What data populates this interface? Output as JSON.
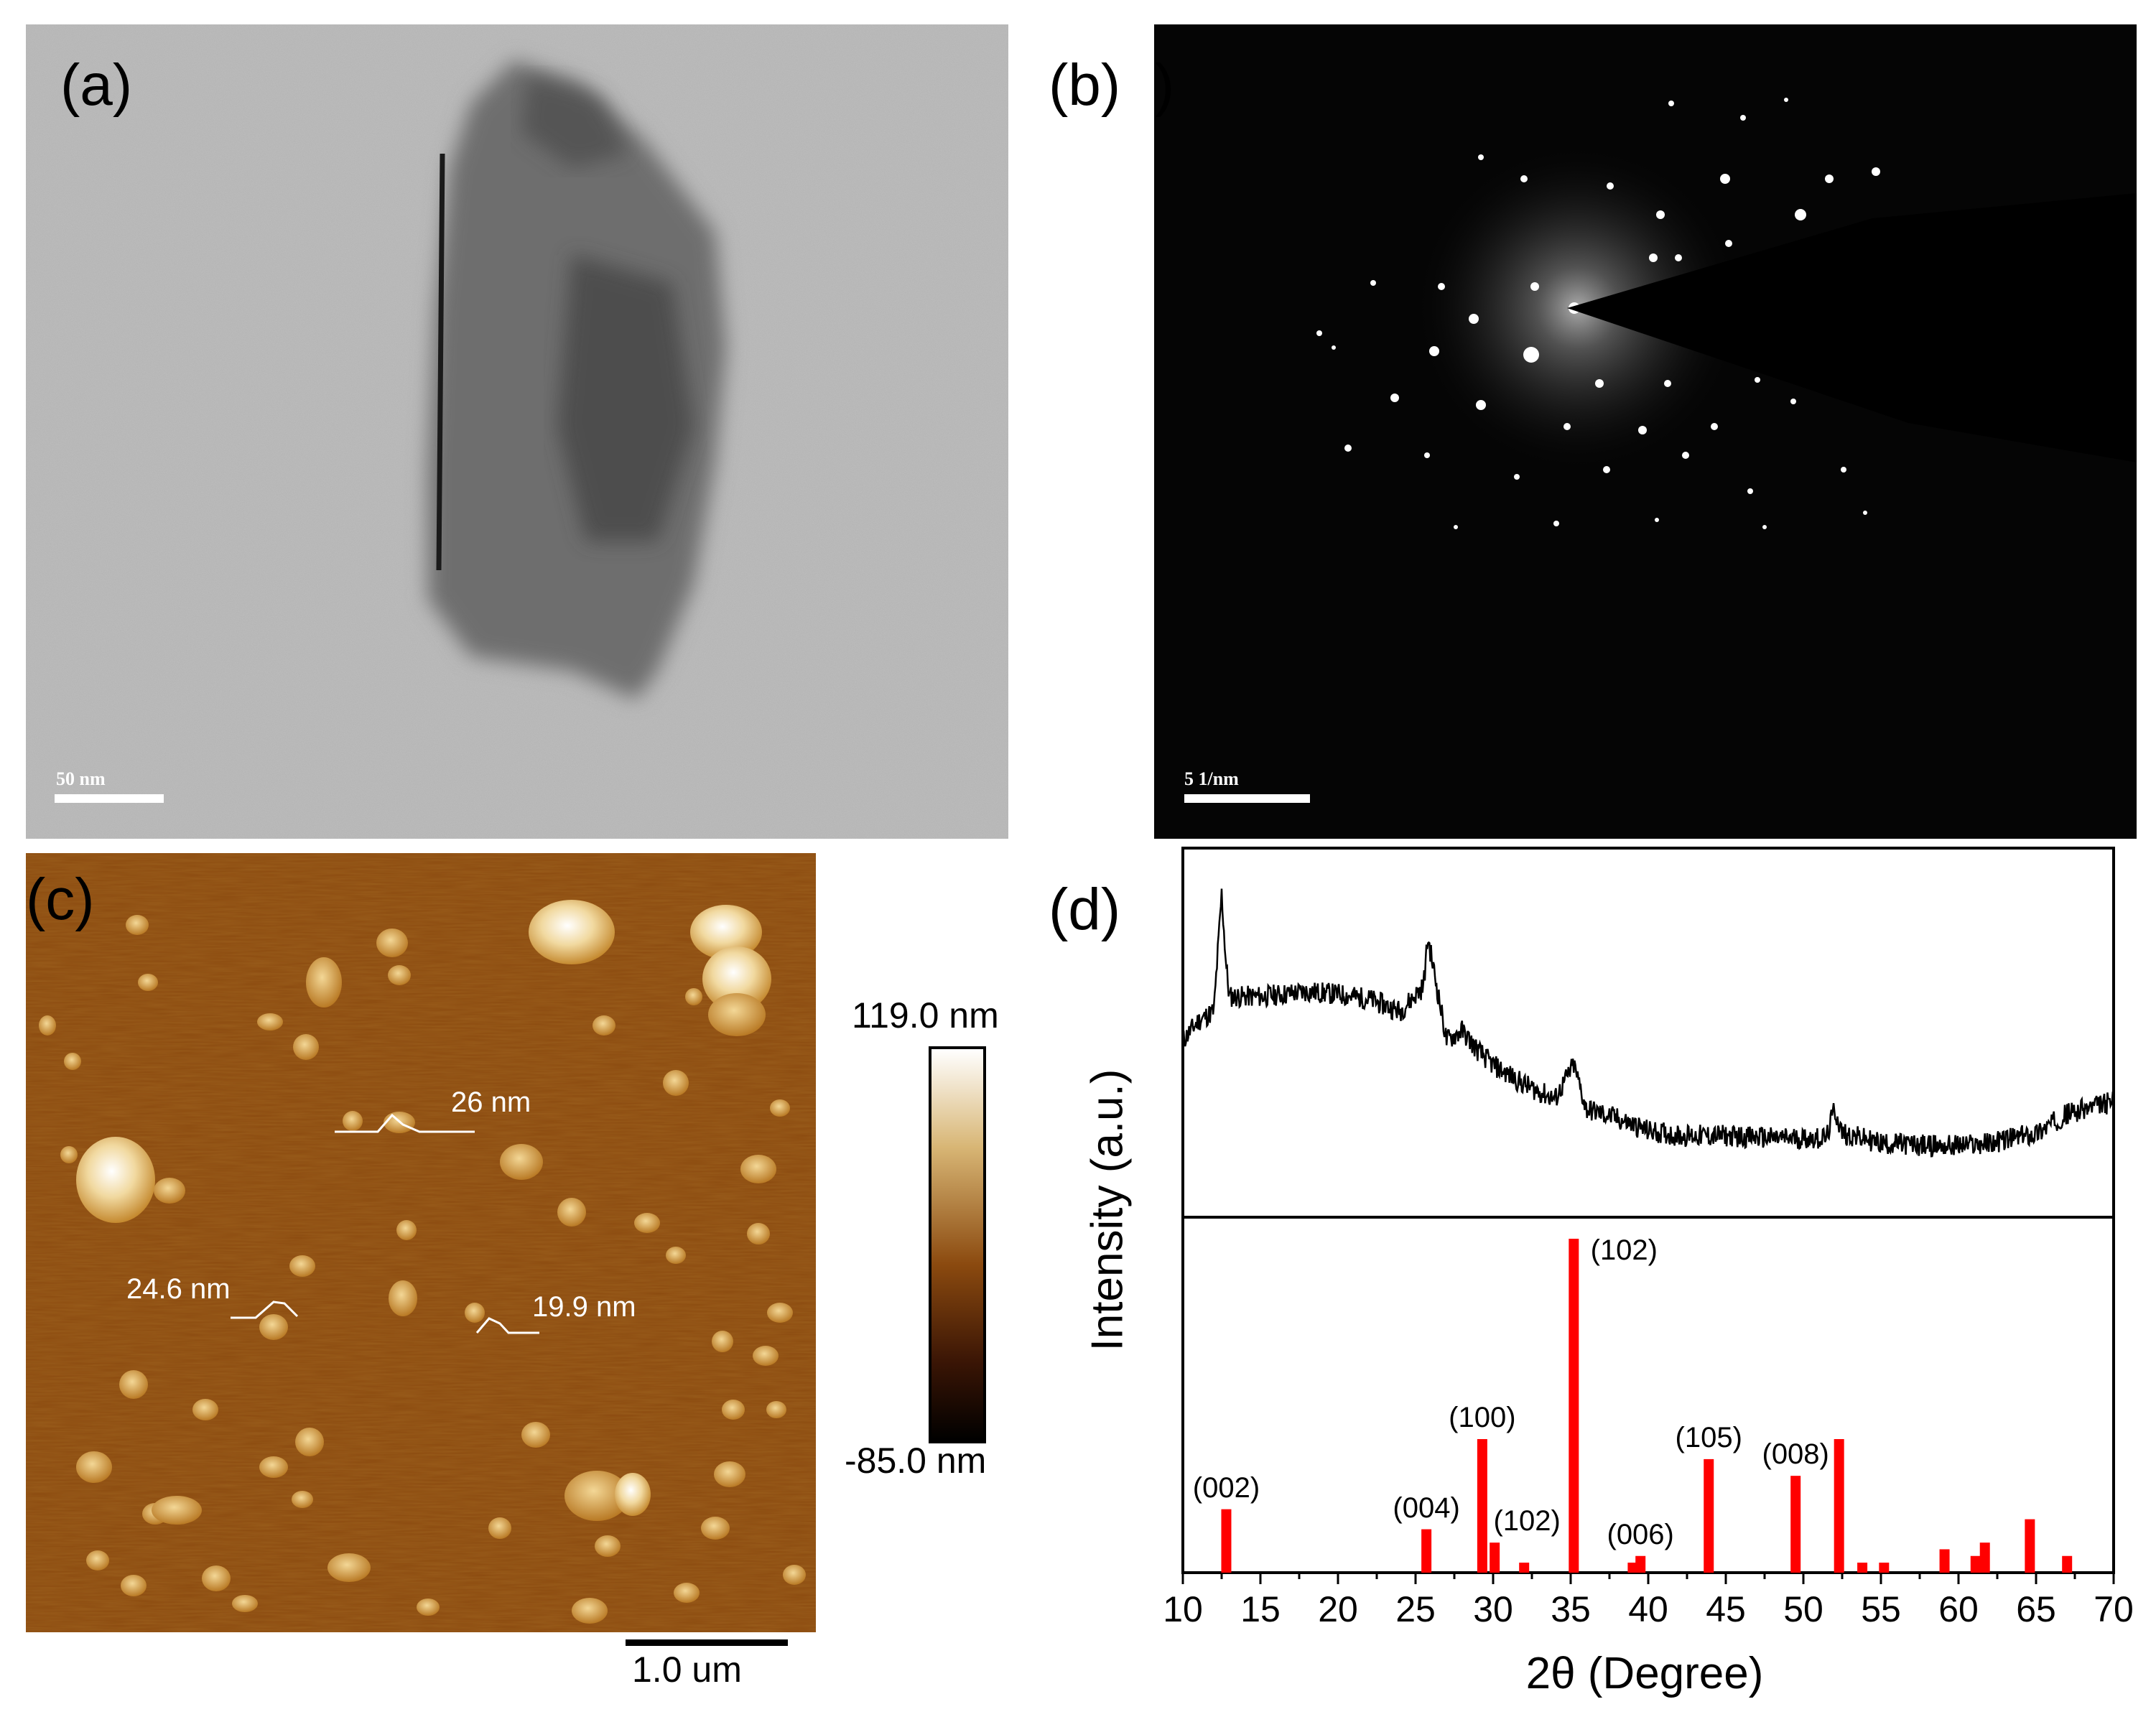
{
  "panels": {
    "a": {
      "label": "(a)",
      "scale_bar": "50 nm"
    },
    "b": {
      "label": "(b)",
      "scale_bar": "5 1/nm"
    },
    "c": {
      "label": "(c)",
      "heights": [
        "26 nm",
        "24.6 nm",
        "19.9 nm"
      ],
      "colorbar_max": "119.0 nm",
      "colorbar_min": "-85.0 nm",
      "scale_bar": "1.0 um"
    },
    "d": {
      "label": "(d)",
      "ylabel": "Intensity (a.u.)",
      "xlabel": "2θ (Degree)"
    }
  },
  "colors": {
    "reference_bars": "#ff0000",
    "pattern": "#000000",
    "afm_low": "#000000",
    "afm_mid": "#8b4a0f",
    "afm_high": "#ffffff"
  },
  "chart_data": {
    "type": "line",
    "xlim": [
      10,
      70
    ],
    "x_ticks": [
      "10",
      "15",
      "20",
      "25",
      "30",
      "35",
      "40",
      "45",
      "50",
      "55",
      "60",
      "65",
      "70"
    ],
    "xlabel": "2θ (Degree)",
    "ylabel": "Intensity (a.u.)",
    "series": [
      {
        "values": [
          [
            10,
            0.4
          ],
          [
            11,
            0.48
          ],
          [
            12,
            0.52
          ],
          [
            12.5,
            1.0
          ],
          [
            12.8,
            0.7
          ],
          [
            13,
            0.58
          ],
          [
            15,
            0.58
          ],
          [
            18,
            0.6
          ],
          [
            20,
            0.59
          ],
          [
            22,
            0.57
          ],
          [
            24,
            0.52
          ],
          [
            25.5,
            0.62
          ],
          [
            25.8,
            0.82
          ],
          [
            26.2,
            0.68
          ],
          [
            27,
            0.4
          ],
          [
            28,
            0.44
          ],
          [
            29,
            0.36
          ],
          [
            30,
            0.3
          ],
          [
            32,
            0.22
          ],
          [
            34,
            0.16
          ],
          [
            35.2,
            0.3
          ],
          [
            36,
            0.12
          ],
          [
            38,
            0.08
          ],
          [
            40,
            0.03
          ],
          [
            42,
            0.01
          ],
          [
            45,
            0.01
          ],
          [
            48,
            0.0
          ],
          [
            50,
            0.0
          ],
          [
            51.5,
            0.0
          ],
          [
            52,
            0.12
          ],
          [
            52.5,
            0.02
          ],
          [
            55,
            -0.02
          ],
          [
            58,
            -0.03
          ],
          [
            60,
            -0.03
          ],
          [
            62,
            -0.02
          ],
          [
            65,
            0.02
          ],
          [
            67,
            0.1
          ],
          [
            70,
            0.15
          ]
        ]
      }
    ],
    "reference_peaks": [
      {
        "x": 12.8,
        "h": 0.19,
        "label": "(002)"
      },
      {
        "x": 25.7,
        "h": 0.13,
        "label": "(004)"
      },
      {
        "x": 29.3,
        "h": 0.4,
        "label": "(100)"
      },
      {
        "x": 30.1,
        "h": 0.09,
        "label": "(102)"
      },
      {
        "x": 32.0,
        "h": 0.03,
        "label": ""
      },
      {
        "x": 35.2,
        "h": 1.0,
        "label": "(102)"
      },
      {
        "x": 39.0,
        "h": 0.03,
        "label": ""
      },
      {
        "x": 39.5,
        "h": 0.05,
        "label": "(006)"
      },
      {
        "x": 43.9,
        "h": 0.34,
        "label": "(105)"
      },
      {
        "x": 49.5,
        "h": 0.29,
        "label": "(008)"
      },
      {
        "x": 52.3,
        "h": 0.4,
        "label": ""
      },
      {
        "x": 53.8,
        "h": 0.03,
        "label": ""
      },
      {
        "x": 55.2,
        "h": 0.03,
        "label": ""
      },
      {
        "x": 59.1,
        "h": 0.07,
        "label": ""
      },
      {
        "x": 61.1,
        "h": 0.05,
        "label": ""
      },
      {
        "x": 61.7,
        "h": 0.09,
        "label": ""
      },
      {
        "x": 64.6,
        "h": 0.16,
        "label": ""
      },
      {
        "x": 67.0,
        "h": 0.05,
        "label": ""
      }
    ]
  }
}
